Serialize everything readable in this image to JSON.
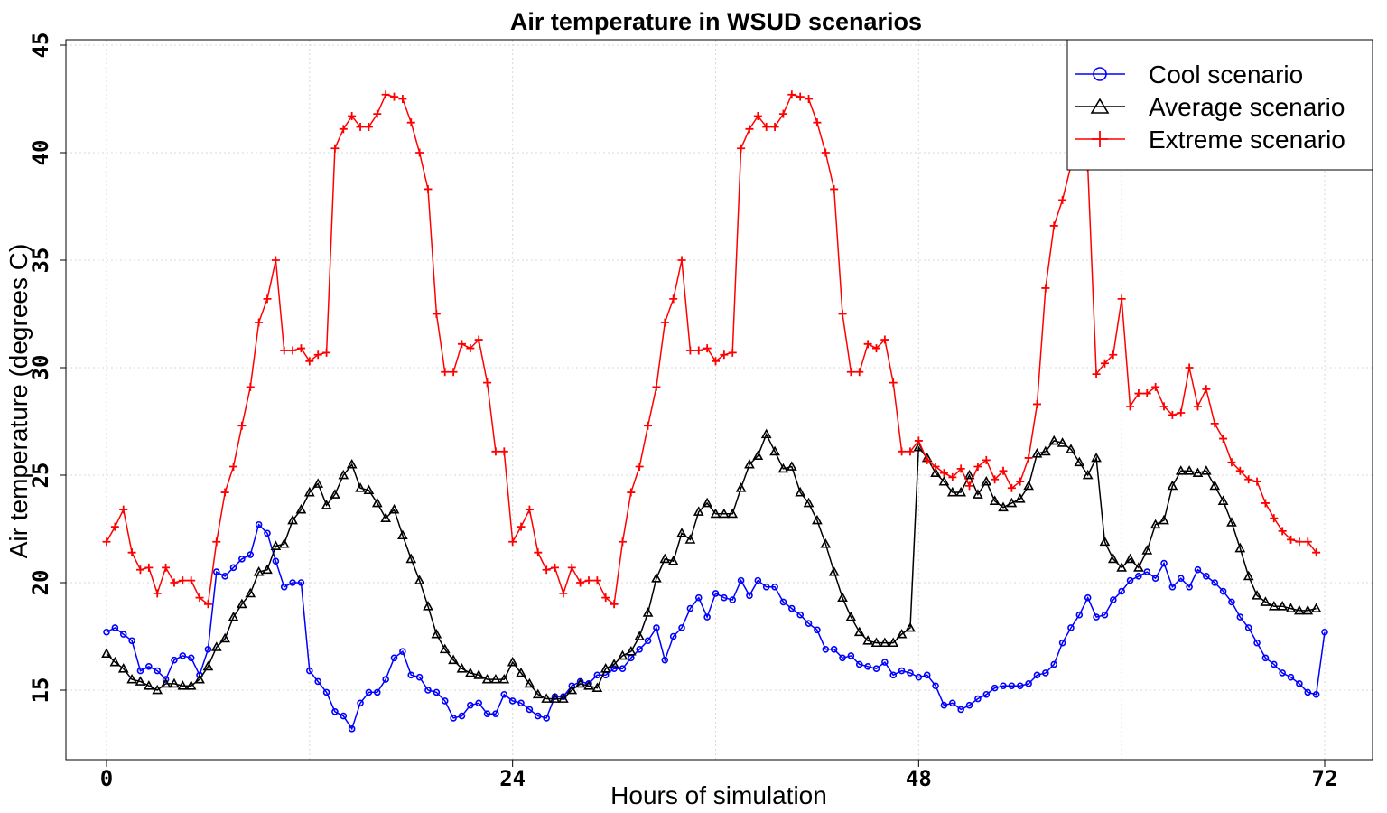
{
  "chart_data": {
    "type": "line",
    "title": "Air temperature in WSUD scenarios",
    "xlabel": "Hours of simulation",
    "ylabel": "Air temperature (degrees C)",
    "xlim": [
      0,
      72
    ],
    "ylim": [
      12.5,
      45
    ],
    "x_ticks": [
      0,
      24,
      48,
      72
    ],
    "y_ticks": [
      15,
      20,
      25,
      30,
      35,
      40,
      45
    ],
    "grid": true,
    "legend_position": "top-right",
    "x_step_hours": 0.5,
    "series": [
      {
        "name": "Cool scenario",
        "color": "#0000ff",
        "marker": "circle",
        "values": [
          17.7,
          17.9,
          17.6,
          17.3,
          15.9,
          16.1,
          15.9,
          15.5,
          16.4,
          16.6,
          16.5,
          15.7,
          16.9,
          20.5,
          20.3,
          20.7,
          21.1,
          21.3,
          22.7,
          22.3,
          21.0,
          19.8,
          20.0,
          20.0,
          15.9,
          15.4,
          14.9,
          14.0,
          13.8,
          13.2,
          14.4,
          14.9,
          14.9,
          15.5,
          16.5,
          16.8,
          15.7,
          15.6,
          15.0,
          14.9,
          14.5,
          13.7,
          13.8,
          14.3,
          14.4,
          13.9,
          13.9,
          14.8,
          14.5,
          14.4,
          14.1,
          13.8,
          13.7,
          14.7,
          14.7,
          15.2,
          15.4,
          15.3,
          15.7,
          15.7,
          16.0,
          16.0,
          16.5,
          16.9,
          17.3,
          17.9,
          16.4,
          17.5,
          17.9,
          18.8,
          19.3,
          18.4,
          19.5,
          19.3,
          19.2,
          20.1,
          19.4,
          20.1,
          19.8,
          19.8,
          19.1,
          18.8,
          18.5,
          18.1,
          17.8,
          16.9,
          16.9,
          16.5,
          16.6,
          16.2,
          16.1,
          16.0,
          16.3,
          15.7,
          15.9,
          15.8,
          15.6,
          15.7,
          15.2,
          14.3,
          14.4,
          14.1,
          14.3,
          14.6,
          14.8,
          15.1,
          15.2,
          15.2,
          15.2,
          15.3,
          15.7,
          15.8,
          16.2,
          17.2,
          17.9,
          18.5,
          19.3,
          18.4,
          18.5,
          19.2,
          19.6,
          20.1,
          20.3,
          20.5,
          20.2,
          20.9,
          19.8,
          20.2,
          19.8,
          20.6,
          20.3,
          20.0,
          19.6,
          19.1,
          18.4,
          17.9,
          17.2,
          16.5,
          16.2,
          15.8,
          15.6,
          15.3,
          14.9,
          14.8,
          17.7
        ]
      },
      {
        "name": "Average scenario",
        "color": "#000000",
        "marker": "triangle",
        "values": [
          16.7,
          16.3,
          16.0,
          15.5,
          15.4,
          15.2,
          15.0,
          15.3,
          15.3,
          15.2,
          15.2,
          15.5,
          16.1,
          17.0,
          17.4,
          18.4,
          19.0,
          19.5,
          20.5,
          20.6,
          21.7,
          21.8,
          22.9,
          23.4,
          24.2,
          24.6,
          23.6,
          24.1,
          25.0,
          25.5,
          24.4,
          24.3,
          23.7,
          23.0,
          23.4,
          22.2,
          21.1,
          20.1,
          18.9,
          17.6,
          16.9,
          16.4,
          16.0,
          15.8,
          15.7,
          15.5,
          15.5,
          15.5,
          16.3,
          15.8,
          15.3,
          14.8,
          14.6,
          14.6,
          14.6,
          15.0,
          15.3,
          15.2,
          15.1,
          16.0,
          16.2,
          16.6,
          16.8,
          17.5,
          18.6,
          20.2,
          21.1,
          21.0,
          22.3,
          22.0,
          23.3,
          23.7,
          23.2,
          23.2,
          23.2,
          24.4,
          25.5,
          25.9,
          26.9,
          26.1,
          25.3,
          25.4,
          24.2,
          23.7,
          22.9,
          21.8,
          20.5,
          19.3,
          18.4,
          17.7,
          17.3,
          17.2,
          17.2,
          17.2,
          17.6,
          17.9,
          26.3,
          25.8,
          25.1,
          24.7,
          24.2,
          24.2,
          25.0,
          24.1,
          24.7,
          23.8,
          23.5,
          23.7,
          23.9,
          24.5,
          26.0,
          26.1,
          26.6,
          26.5,
          26.2,
          25.6,
          25.0,
          25.8,
          21.9,
          21.1,
          20.7,
          21.1,
          20.7,
          21.5,
          22.7,
          22.9,
          24.5,
          25.2,
          25.2,
          25.1,
          25.2,
          24.5,
          23.8,
          22.8,
          21.6,
          20.3,
          19.4,
          19.1,
          18.9,
          18.9,
          18.8,
          18.7,
          18.7,
          18.8
        ]
      },
      {
        "name": "Extreme scenario",
        "color": "#ff0000",
        "marker": "plus",
        "values": [
          21.9,
          22.6,
          23.4,
          21.4,
          20.6,
          20.7,
          19.5,
          20.7,
          20.0,
          20.1,
          20.1,
          19.3,
          19.0,
          21.9,
          24.2,
          25.4,
          27.3,
          29.1,
          32.1,
          33.2,
          35.0,
          30.8,
          30.8,
          30.9,
          30.3,
          30.6,
          30.7,
          40.2,
          41.1,
          41.7,
          41.2,
          41.2,
          41.8,
          42.7,
          42.6,
          42.5,
          41.4,
          40.0,
          38.3,
          32.5,
          29.8,
          29.8,
          31.1,
          30.9,
          31.3,
          29.3,
          26.1,
          26.1,
          21.9,
          22.6,
          23.4,
          21.4,
          20.6,
          20.7,
          19.5,
          20.7,
          20.0,
          20.1,
          20.1,
          19.3,
          19.0,
          21.9,
          24.2,
          25.4,
          27.3,
          29.1,
          32.1,
          33.2,
          35.0,
          30.8,
          30.8,
          30.9,
          30.3,
          30.6,
          30.7,
          40.2,
          41.1,
          41.7,
          41.2,
          41.2,
          41.8,
          42.7,
          42.6,
          42.5,
          41.4,
          40.0,
          38.3,
          32.5,
          29.8,
          29.8,
          31.1,
          30.9,
          31.3,
          29.3,
          26.1,
          26.1,
          26.6,
          25.7,
          25.4,
          25.1,
          24.9,
          25.3,
          24.5,
          25.4,
          25.7,
          24.8,
          25.2,
          24.4,
          24.7,
          25.8,
          28.3,
          33.7,
          36.6,
          37.8,
          39.4,
          39.5,
          39.3,
          29.7,
          30.2,
          30.6,
          33.2,
          28.2,
          28.8,
          28.8,
          29.1,
          28.2,
          27.8,
          27.9,
          30.0,
          28.2,
          29.0,
          27.4,
          26.7,
          25.6,
          25.2,
          24.8,
          24.7,
          23.7,
          23.0,
          22.4,
          22.0,
          21.9,
          21.9,
          21.4
        ]
      }
    ]
  }
}
